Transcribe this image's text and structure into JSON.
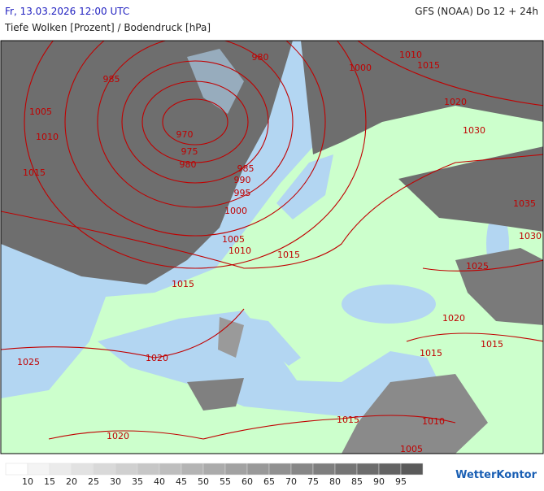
{
  "header": {
    "date": "Fr, 13.03.2026 12:00 UTC",
    "model": "GFS (NOAA) Do 12 + 24h",
    "subtitle": "Tiefe Wolken [Prozent] / Bodendruck [hPa]"
  },
  "isobars": {
    "labels": [
      "980",
      "985",
      "1000",
      "1010",
      "1015",
      "1020",
      "1030",
      "1005",
      "1010",
      "1015",
      "970",
      "975",
      "980",
      "985",
      "990",
      "995",
      "1000",
      "1005",
      "1010",
      "1015",
      "1015",
      "1035",
      "1030",
      "1025",
      "1020",
      "1015",
      "1015",
      "1025",
      "1020",
      "1020",
      "1015",
      "1010",
      "1005"
    ]
  },
  "legend": {
    "labels": [
      "10",
      "15",
      "20",
      "25",
      "30",
      "35",
      "40",
      "45",
      "50",
      "55",
      "60",
      "65",
      "70",
      "75",
      "80",
      "85",
      "90",
      "95"
    ],
    "colors": [
      "#ffffff",
      "#f4f4f4",
      "#ebebeb",
      "#e2e2e2",
      "#d9d9d9",
      "#d0d0d0",
      "#c7c7c7",
      "#bebebe",
      "#b4b4b4",
      "#ababab",
      "#a2a2a2",
      "#999999",
      "#909090",
      "#878787",
      "#7e7e7e",
      "#757575",
      "#6c6c6c",
      "#636363",
      "#5a5a5a"
    ]
  },
  "logo": "WetterKontor"
}
